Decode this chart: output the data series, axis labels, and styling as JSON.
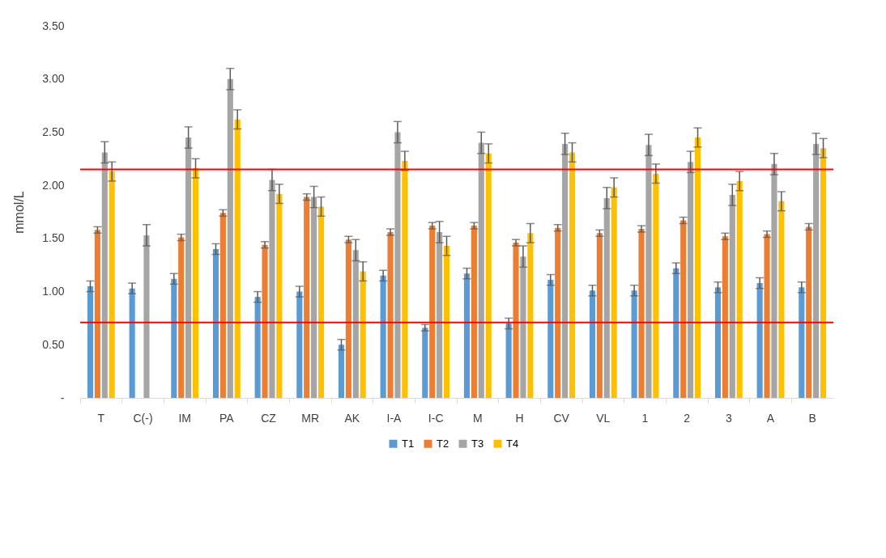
{
  "chart_data": {
    "type": "bar",
    "ylabel": "mmol/L",
    "categories": [
      "T",
      "C(-)",
      "IM",
      "PA",
      "CZ",
      "MR",
      "AK",
      "I-A",
      "I-C",
      "M",
      "H",
      "CV",
      "VL",
      "1",
      "2",
      "3",
      "A",
      "B"
    ],
    "series": [
      {
        "name": "T1",
        "color": "#5b9bd5",
        "values": [
          1.05,
          1.03,
          1.12,
          1.4,
          0.95,
          1.0,
          0.5,
          1.15,
          0.66,
          1.17,
          0.7,
          1.11,
          1.01,
          1.01,
          1.22,
          1.04,
          1.08,
          1.04
        ],
        "errors": [
          0.05,
          0.05,
          0.05,
          0.05,
          0.05,
          0.05,
          0.05,
          0.05,
          0.03,
          0.05,
          0.05,
          0.05,
          0.05,
          0.05,
          0.05,
          0.05,
          0.05,
          0.05
        ]
      },
      {
        "name": "T2",
        "color": "#ed7d31",
        "values": [
          1.58,
          null,
          1.51,
          1.74,
          1.44,
          1.89,
          1.49,
          1.56,
          1.62,
          1.62,
          1.46,
          1.6,
          1.55,
          1.59,
          1.67,
          1.52,
          1.54,
          1.61
        ],
        "errors": [
          0.03,
          null,
          0.03,
          0.03,
          0.03,
          0.03,
          0.03,
          0.03,
          0.03,
          0.03,
          0.03,
          0.03,
          0.03,
          0.03,
          0.03,
          0.03,
          0.03,
          0.03
        ]
      },
      {
        "name": "T3",
        "color": "#a5a5a5",
        "values": [
          2.31,
          1.53,
          2.45,
          3.0,
          2.05,
          1.89,
          1.39,
          2.5,
          1.56,
          2.4,
          1.33,
          2.39,
          1.88,
          2.38,
          2.22,
          1.91,
          2.2,
          2.39
        ],
        "errors": [
          0.1,
          0.1,
          0.1,
          0.1,
          0.1,
          0.1,
          0.1,
          0.1,
          0.1,
          0.1,
          0.1,
          0.1,
          0.1,
          0.1,
          0.1,
          0.1,
          0.1,
          0.1
        ]
      },
      {
        "name": "T4",
        "color": "#ffc000",
        "values": [
          2.13,
          null,
          2.16,
          2.62,
          1.92,
          1.8,
          1.19,
          2.23,
          1.43,
          2.3,
          1.55,
          2.31,
          1.98,
          2.11,
          2.45,
          2.04,
          1.85,
          2.35
        ],
        "errors": [
          0.09,
          null,
          0.09,
          0.09,
          0.09,
          0.09,
          0.09,
          0.09,
          0.09,
          0.09,
          0.09,
          0.09,
          0.09,
          0.09,
          0.09,
          0.09,
          0.09,
          0.09
        ]
      }
    ],
    "ylim": [
      0,
      3.5
    ],
    "yticks": [
      {
        "value": 0,
        "label": "-"
      },
      {
        "value": 0.5,
        "label": "0.50"
      },
      {
        "value": 1.0,
        "label": "1.00"
      },
      {
        "value": 1.5,
        "label": "1.50"
      },
      {
        "value": 2.0,
        "label": "2.00"
      },
      {
        "value": 2.5,
        "label": "2.50"
      },
      {
        "value": 3.0,
        "label": "3.00"
      },
      {
        "value": 3.5,
        "label": "3.50"
      }
    ],
    "ref_lines": [
      {
        "axis": "y",
        "value": 2.15,
        "color": "#ff0000"
      },
      {
        "axis": "y",
        "value": 0.71,
        "color": "#ff0000"
      }
    ],
    "grid": false,
    "legend": "bottom"
  }
}
